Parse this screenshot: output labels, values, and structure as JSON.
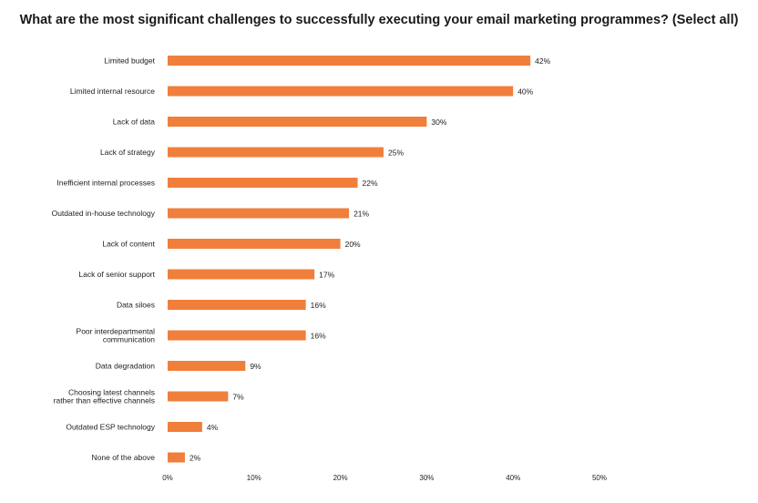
{
  "chart_data": {
    "type": "bar",
    "orientation": "horizontal",
    "title": "What are the most significant challenges to successfully executing your email marketing programmes? (Select all)",
    "xlabel": "",
    "ylabel": "",
    "categories": [
      "Limited budget",
      "Limited internal resource",
      "Lack of data",
      "Lack of strategy",
      "Inefficient internal processes",
      "Outdated in-house technology",
      "Lack of content",
      "Lack of senior support",
      "Data siloes",
      "Poor interdepartmental communication",
      "Data degradation",
      "Choosing latest channels rather than effective channels",
      "Outdated ESP technology",
      "None of the above"
    ],
    "values": [
      42,
      40,
      30,
      25,
      22,
      21,
      20,
      17,
      16,
      16,
      9,
      7,
      4,
      2
    ],
    "value_labels": [
      "42%",
      "40%",
      "30%",
      "25%",
      "22%",
      "21%",
      "20%",
      "17%",
      "16%",
      "16%",
      "9%",
      "7%",
      "4%",
      "2%"
    ],
    "xlim": [
      0,
      50
    ],
    "x_ticks": [
      0,
      10,
      20,
      30,
      40,
      50
    ],
    "x_tick_labels": [
      "0%",
      "10%",
      "20%",
      "30%",
      "40%",
      "50%"
    ],
    "grid": false,
    "legend": "none",
    "bar_color": "#f07f3c"
  }
}
